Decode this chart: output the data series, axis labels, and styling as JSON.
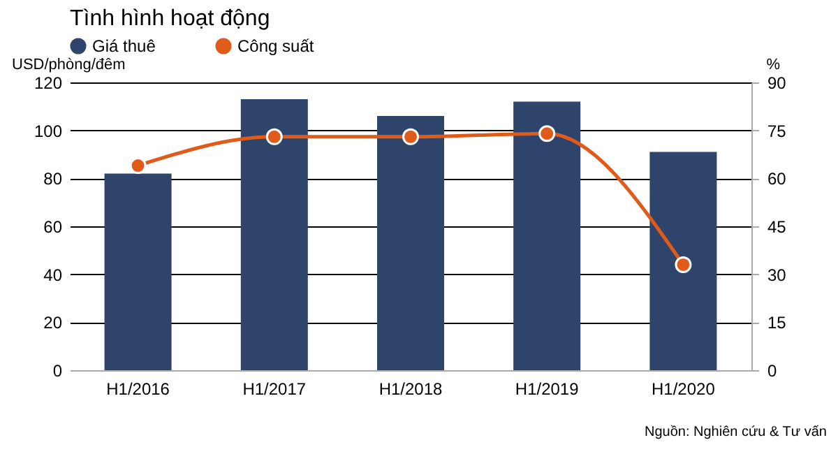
{
  "chart_data": {
    "type": "bar",
    "title": "Tình hình hoạt động",
    "categories": [
      "H1/2016",
      "H1/2017",
      "H1/2018",
      "H1/2019",
      "H1/2020"
    ],
    "series": [
      {
        "name": "Giá thuê",
        "color": "#2f446b",
        "values": [
          82,
          113,
          106,
          112,
          91
        ]
      },
      {
        "name": "Công suất",
        "type": "line",
        "axis": "y2",
        "color": "#e05a1a",
        "values": [
          64,
          73,
          73,
          74,
          33
        ]
      }
    ],
    "ylabel": "USD/phòng/đêm",
    "y2label": "%",
    "ylim": [
      0,
      120
    ],
    "yticks": [
      0,
      20,
      40,
      60,
      80,
      100,
      120
    ],
    "y2lim": [
      0,
      90
    ],
    "y2ticks": [
      0,
      15,
      30,
      45,
      60,
      75,
      90
    ],
    "grid": "y",
    "legend": "top",
    "marker": "circle",
    "line_style": "solid",
    "annotations": [
      "Nguồn: Nghiên cứu & Tư vấn"
    ]
  }
}
